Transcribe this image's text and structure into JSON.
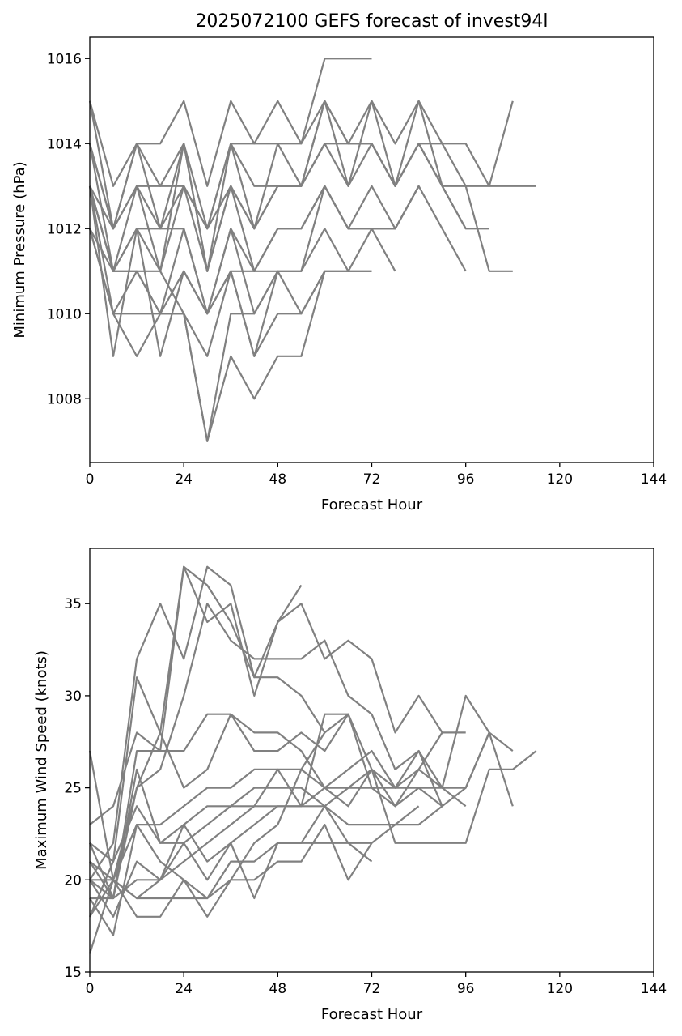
{
  "chart_data": [
    {
      "type": "line",
      "title": "2025072100 GEFS forecast of invest94l",
      "xlabel": "Forecast Hour",
      "ylabel": "Minimum Pressure (hPa)",
      "xlim": [
        0,
        144
      ],
      "ylim": [
        1006.5,
        1016.5
      ],
      "xticks": [
        0,
        24,
        48,
        72,
        96,
        120,
        144
      ],
      "yticks": [
        1008,
        1010,
        1012,
        1014,
        1016
      ],
      "grid": false,
      "color": "#808080",
      "series": [
        {
          "x": [
            0,
            6,
            12,
            18,
            24,
            30,
            36,
            42,
            48,
            54,
            60,
            66,
            72
          ],
          "values": [
            1015,
            1013,
            1014,
            1014,
            1015,
            1013,
            1015,
            1014,
            1015,
            1014,
            1016,
            1016,
            1016
          ]
        },
        {
          "x": [
            0,
            6,
            12,
            18,
            24,
            30,
            36,
            42,
            48,
            54,
            60,
            66,
            72,
            78,
            84,
            90,
            96,
            102,
            108
          ],
          "values": [
            1015,
            1012,
            1014,
            1013,
            1014,
            1012,
            1014,
            1014,
            1014,
            1014,
            1015,
            1014,
            1015,
            1014,
            1015,
            1014,
            1014,
            1013,
            1015
          ]
        },
        {
          "x": [
            0,
            6,
            12,
            18,
            24,
            30,
            36,
            42,
            48,
            54,
            60,
            66,
            72,
            78,
            84,
            90,
            96,
            102,
            108,
            114
          ],
          "values": [
            1014,
            1012,
            1013,
            1013,
            1013,
            1012,
            1014,
            1013,
            1013,
            1013,
            1015,
            1014,
            1014,
            1013,
            1014,
            1013,
            1013,
            1013,
            1013,
            1013
          ]
        },
        {
          "x": [
            0,
            6,
            12,
            18,
            24,
            30,
            36,
            42,
            48,
            54,
            60,
            66,
            72,
            78,
            84,
            90,
            96
          ],
          "values": [
            1014,
            1012,
            1014,
            1012,
            1014,
            1011,
            1014,
            1012,
            1014,
            1013,
            1015,
            1013,
            1015,
            1013,
            1015,
            1013,
            1012
          ]
        },
        {
          "x": [
            0,
            6,
            12,
            18,
            24,
            30,
            36,
            42,
            48,
            54,
            60,
            66,
            72,
            78,
            84,
            90,
            96,
            102
          ],
          "values": [
            1013,
            1012,
            1013,
            1012,
            1013,
            1012,
            1013,
            1012,
            1013,
            1013,
            1014,
            1013,
            1014,
            1013,
            1014,
            1013,
            1012,
            1012
          ]
        },
        {
          "x": [
            0,
            6,
            12,
            18,
            24,
            30,
            36,
            42,
            48,
            54,
            60,
            66,
            72,
            78,
            84,
            90,
            96,
            102,
            108
          ],
          "values": [
            1014,
            1011,
            1013,
            1011,
            1014,
            1011,
            1013,
            1012,
            1013,
            1013,
            1014,
            1014,
            1014,
            1013,
            1014,
            1014,
            1013,
            1011,
            1011
          ]
        },
        {
          "x": [
            0,
            6,
            12,
            18,
            24,
            30,
            36,
            42,
            48,
            54,
            60,
            66,
            72,
            78,
            84,
            90,
            96
          ],
          "values": [
            1013,
            1011,
            1012,
            1011,
            1013,
            1011,
            1013,
            1011,
            1012,
            1012,
            1013,
            1012,
            1013,
            1012,
            1013,
            1012,
            1011
          ]
        },
        {
          "x": [
            0,
            6,
            12,
            18,
            24,
            30,
            36,
            42,
            48,
            54,
            60,
            66,
            72,
            78,
            84
          ],
          "values": [
            1013,
            1011,
            1012,
            1012,
            1012,
            1010,
            1012,
            1011,
            1012,
            1012,
            1013,
            1012,
            1012,
            1012,
            1013
          ]
        },
        {
          "x": [
            0,
            6,
            12,
            18,
            24,
            30,
            36,
            42,
            48,
            54,
            60,
            66,
            72,
            78,
            84
          ],
          "values": [
            1012,
            1010,
            1011,
            1010,
            1012,
            1010,
            1012,
            1010,
            1011,
            1011,
            1013,
            1012,
            1012,
            1012,
            1013
          ]
        },
        {
          "x": [
            0,
            6,
            12,
            18,
            24,
            30,
            36,
            42,
            48,
            54,
            60,
            66,
            72,
            78
          ],
          "values": [
            1012,
            1011,
            1011,
            1010,
            1011,
            1010,
            1011,
            1011,
            1011,
            1011,
            1012,
            1011,
            1012,
            1011
          ]
        },
        {
          "x": [
            0,
            6,
            12,
            18,
            24,
            30,
            36,
            42,
            48,
            54,
            60,
            66,
            72
          ],
          "values": [
            1013,
            1009,
            1012,
            1009,
            1011,
            1010,
            1011,
            1009,
            1011,
            1010,
            1011,
            1011,
            1011
          ]
        },
        {
          "x": [
            0,
            6,
            12,
            18,
            24,
            30,
            36,
            42,
            48,
            54,
            60,
            66,
            72
          ],
          "values": [
            1012,
            1010,
            1009,
            1010,
            1010,
            1007,
            1009,
            1008,
            1009,
            1009,
            1011,
            1011,
            1011
          ]
        },
        {
          "x": [
            0,
            6,
            12,
            18,
            24,
            30,
            36,
            42,
            48,
            54,
            60
          ],
          "values": [
            1013,
            1010,
            1010,
            1010,
            1010,
            1009,
            1011,
            1009,
            1010,
            1010,
            1011
          ]
        },
        {
          "x": [
            0,
            6,
            12,
            18,
            24,
            30,
            36,
            42,
            48
          ],
          "values": [
            1013,
            1011,
            1011,
            1011,
            1010,
            1007,
            1010,
            1010,
            1011
          ]
        }
      ]
    },
    {
      "type": "line",
      "title": "",
      "xlabel": "Forecast Hour",
      "ylabel": "Maximum Wind Speed (knots)",
      "xlim": [
        0,
        144
      ],
      "ylim": [
        15,
        38
      ],
      "xticks": [
        0,
        24,
        48,
        72,
        96,
        120,
        144
      ],
      "yticks": [
        15,
        20,
        25,
        30,
        35
      ],
      "grid": false,
      "color": "#808080",
      "series": [
        {
          "x": [
            0,
            6,
            12,
            18,
            24,
            30,
            36,
            42,
            48,
            54
          ],
          "values": [
            20,
            22,
            32,
            35,
            32,
            37,
            36,
            31,
            34,
            36
          ]
        },
        {
          "x": [
            0,
            6,
            12,
            18,
            24,
            30,
            36,
            42,
            48,
            54,
            60,
            66,
            72,
            78,
            84,
            90,
            96
          ],
          "values": [
            18,
            21,
            31,
            28,
            37,
            34,
            35,
            30,
            34,
            35,
            32,
            33,
            32,
            28,
            30,
            28,
            28
          ]
        },
        {
          "x": [
            0,
            6,
            12,
            18,
            24,
            30,
            36,
            42,
            48,
            54,
            60,
            66,
            72,
            78,
            84,
            90,
            96,
            102,
            108
          ],
          "values": [
            22,
            19,
            25,
            26,
            30,
            35,
            33,
            32,
            32,
            32,
            33,
            30,
            29,
            26,
            27,
            25,
            30,
            28,
            27
          ]
        },
        {
          "x": [
            0,
            6,
            12,
            18,
            24,
            30,
            36,
            42,
            48,
            54,
            60,
            66
          ],
          "values": [
            23,
            24,
            28,
            27,
            37,
            36,
            34,
            31,
            31,
            30,
            28,
            29
          ]
        },
        {
          "x": [
            0,
            6,
            12,
            18,
            24,
            30,
            36,
            42,
            48,
            54,
            60,
            66,
            72,
            78,
            84,
            90,
            96,
            102,
            108
          ],
          "values": [
            21,
            19,
            27,
            27,
            27,
            29,
            29,
            28,
            28,
            27,
            25,
            26,
            27,
            25,
            27,
            24,
            25,
            28,
            24
          ]
        },
        {
          "x": [
            0,
            6,
            12,
            18,
            24,
            30,
            36,
            42,
            48,
            54,
            60,
            66,
            72,
            78,
            84,
            90
          ],
          "values": [
            20,
            20,
            25,
            28,
            25,
            26,
            29,
            27,
            27,
            28,
            27,
            29,
            26,
            25,
            26,
            28
          ]
        },
        {
          "x": [
            0,
            6,
            12,
            18,
            24,
            30,
            36,
            42,
            48,
            54,
            60,
            66,
            72,
            78,
            84,
            90,
            96,
            102,
            108,
            114
          ],
          "values": [
            19,
            17,
            23,
            23,
            24,
            25,
            25,
            26,
            26,
            26,
            25,
            25,
            26,
            22,
            22,
            22,
            22,
            26,
            26,
            27
          ]
        },
        {
          "x": [
            0,
            6,
            12,
            18,
            24,
            30,
            36,
            42,
            48,
            54,
            60,
            66,
            72,
            78,
            84,
            90,
            96,
            102
          ],
          "values": [
            20,
            19,
            26,
            22,
            23,
            24,
            24,
            24,
            26,
            24,
            25,
            24,
            26,
            24,
            26,
            25,
            25,
            28
          ]
        },
        {
          "x": [
            0,
            6,
            12,
            18,
            24,
            30,
            36,
            42,
            48,
            54,
            60,
            66,
            72,
            78,
            84,
            90
          ],
          "values": [
            22,
            21,
            24,
            22,
            22,
            23,
            24,
            25,
            25,
            25,
            24,
            25,
            25,
            24,
            25,
            24
          ]
        },
        {
          "x": [
            0,
            6,
            12,
            18,
            24,
            30,
            36,
            42,
            48,
            54,
            60,
            66,
            72,
            78,
            84,
            90,
            96
          ],
          "values": [
            20,
            18,
            21,
            20,
            23,
            21,
            22,
            23,
            24,
            24,
            29,
            29,
            25,
            25,
            25,
            25,
            24
          ]
        },
        {
          "x": [
            0,
            6,
            12,
            18,
            24,
            30,
            36,
            42,
            48,
            54,
            60,
            66,
            72,
            78,
            84,
            90
          ],
          "values": [
            19,
            19,
            20,
            20,
            21,
            22,
            23,
            24,
            24,
            24,
            24,
            23,
            23,
            23,
            23,
            24
          ]
        },
        {
          "x": [
            0,
            6,
            12,
            18,
            24,
            30,
            36,
            42,
            48,
            54,
            60,
            66,
            72,
            78,
            84
          ],
          "values": [
            21,
            20,
            19,
            20,
            22,
            20,
            22,
            19,
            22,
            22,
            22,
            22,
            22,
            23,
            24
          ]
        },
        {
          "x": [
            0,
            6,
            12,
            18,
            24,
            30,
            36,
            42,
            48,
            54,
            60,
            66,
            72
          ],
          "values": [
            18,
            20,
            18,
            18,
            20,
            19,
            20,
            20,
            21,
            21,
            23,
            20,
            22
          ]
        },
        {
          "x": [
            0,
            6,
            12,
            18,
            24,
            30,
            36,
            42,
            48,
            54,
            60,
            66,
            72
          ],
          "values": [
            16,
            20,
            19,
            19,
            19,
            19,
            21,
            21,
            22,
            22,
            24,
            22,
            21
          ]
        },
        {
          "x": [
            0,
            6,
            12,
            18,
            24,
            30,
            36,
            42,
            48,
            54,
            60
          ],
          "values": [
            27,
            20,
            23,
            21,
            20,
            18,
            20,
            22,
            23,
            26,
            28
          ]
        }
      ]
    }
  ]
}
